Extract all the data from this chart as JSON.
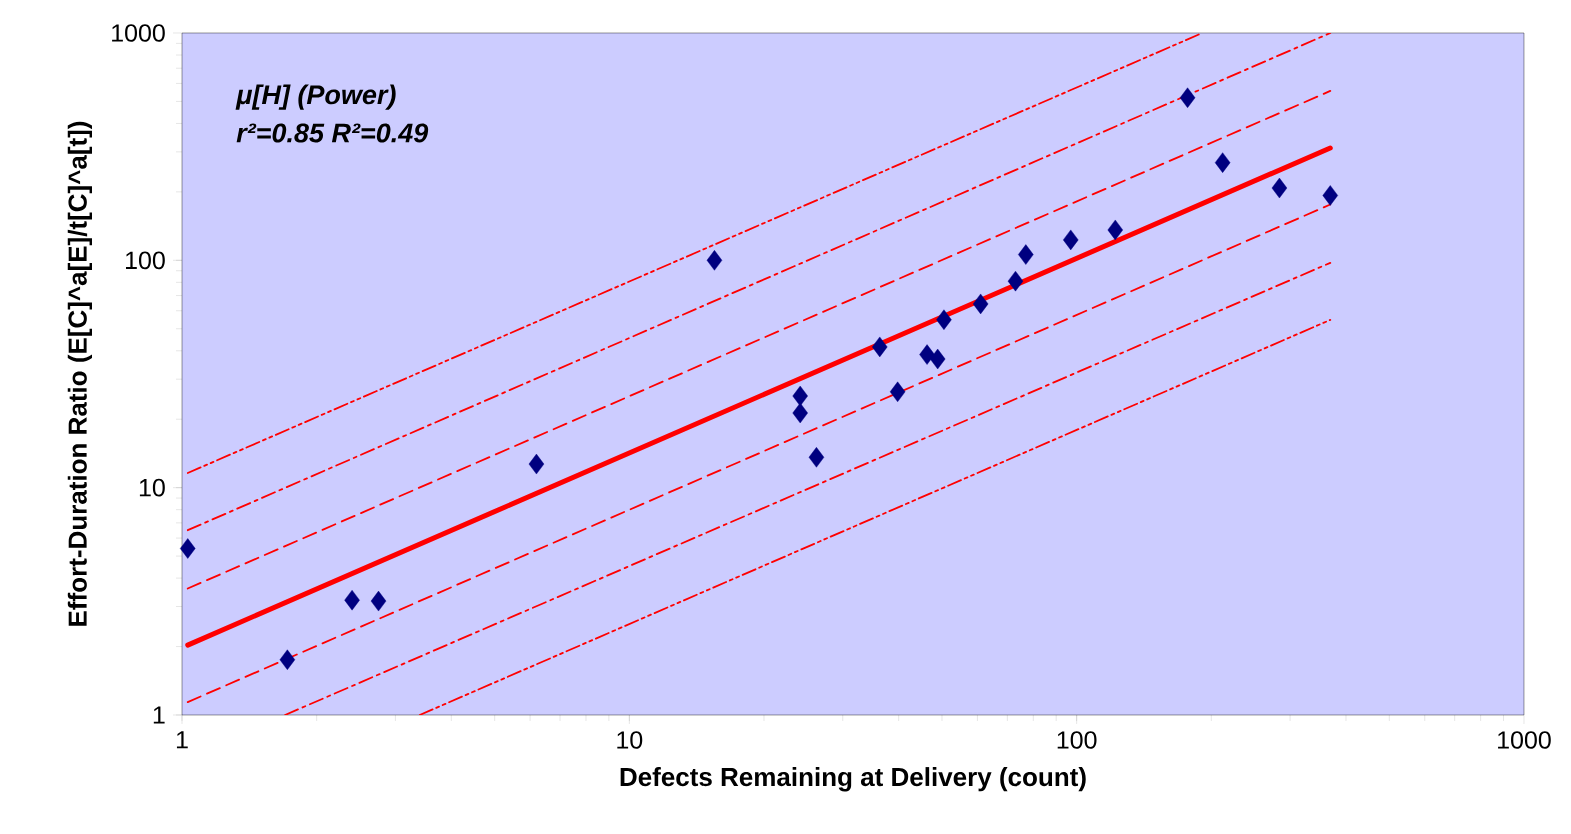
{
  "chart_data": {
    "type": "scatter",
    "xlabel": "Defects Remaining at Delivery (count)",
    "ylabel": "Effort-Duration Ratio (E[C]^a[E]/t[C]^a[t])",
    "annotations": [
      "**μ[H] (Power)**",
      "**r²=0.85  R²=0.49**"
    ],
    "log": "xy",
    "xlim": [
      1,
      1000
    ],
    "ylim": [
      1,
      1000
    ],
    "xticks": [
      1,
      10,
      100,
      1000
    ],
    "yticks": [
      1,
      10,
      100,
      1000
    ],
    "series": [
      {
        "type": "line",
        "color": "#ff0000",
        "line_style": "dashdotdot",
        "x": [
          1.03,
          191
        ],
        "values": [
          11.6,
          1000
        ]
      },
      {
        "type": "line",
        "color": "#ff0000",
        "line_style": "dashdot",
        "x": [
          1.03,
          369
        ],
        "values": [
          6.5,
          1000
        ]
      },
      {
        "type": "line",
        "color": "#ff0000",
        "line_style": "dashed",
        "x": [
          1.03,
          369
        ],
        "values": [
          3.6,
          556
        ]
      },
      {
        "type": "line",
        "color": "#ff0000",
        "line_style": "solid",
        "x": [
          1.03,
          369
        ],
        "values": [
          2.03,
          312
        ]
      },
      {
        "type": "line",
        "color": "#ff0000",
        "line_style": "dashed",
        "x": [
          1.03,
          369
        ],
        "values": [
          1.14,
          176
        ]
      },
      {
        "type": "line",
        "color": "#ff0000",
        "line_style": "dashdot",
        "x": [
          1.7,
          369
        ],
        "values": [
          1,
          97.5
        ]
      },
      {
        "type": "line",
        "color": "#ff0000",
        "line_style": "dashdotdot",
        "x": [
          3.4,
          369
        ],
        "values": [
          1,
          54.7
        ]
      },
      {
        "color": "#000080",
        "marker": "diamond",
        "x": [
          1.03,
          1.72,
          2.4,
          2.75,
          6.2,
          15.5,
          24.1,
          24.1,
          26.2,
          36.3,
          39.8,
          46.3,
          48.9,
          50.5,
          61,
          73,
          77,
          97,
          122,
          177,
          212,
          284,
          369
        ],
        "values": [
          5.4,
          1.75,
          3.2,
          3.17,
          12.7,
          100,
          25.3,
          21.3,
          13.6,
          41.6,
          26.4,
          38.5,
          36.8,
          54.8,
          64.3,
          81,
          106,
          123,
          136,
          519,
          269,
          208,
          193
        ]
      }
    ]
  }
}
